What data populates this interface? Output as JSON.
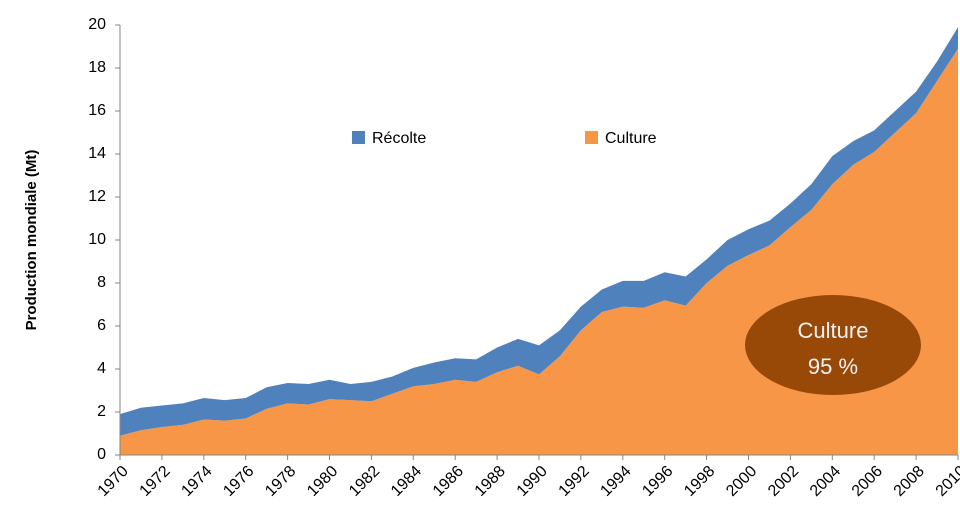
{
  "chart_data": {
    "type": "stacked_area",
    "y_label": "Production mondiale  (Mt)",
    "x": [
      1970,
      1971,
      1972,
      1973,
      1974,
      1975,
      1976,
      1977,
      1978,
      1979,
      1980,
      1981,
      1982,
      1983,
      1984,
      1985,
      1986,
      1987,
      1988,
      1989,
      1990,
      1991,
      1992,
      1993,
      1994,
      1995,
      1996,
      1997,
      1998,
      1999,
      2000,
      2001,
      2002,
      2003,
      2004,
      2005,
      2006,
      2007,
      2008,
      2009,
      2010
    ],
    "series": [
      {
        "name": "Culture",
        "color": "#f79646",
        "values": [
          0.9,
          1.15,
          1.3,
          1.4,
          1.65,
          1.6,
          1.7,
          2.15,
          2.4,
          2.35,
          2.6,
          2.55,
          2.5,
          2.85,
          3.2,
          3.3,
          3.5,
          3.4,
          3.85,
          4.15,
          3.75,
          4.6,
          5.8,
          6.65,
          6.9,
          6.85,
          7.2,
          6.95,
          8.0,
          8.8,
          9.3,
          9.75,
          10.6,
          11.4,
          12.6,
          13.5,
          14.1,
          15.0,
          15.9,
          17.4,
          18.9
        ]
      },
      {
        "name": "Récolte",
        "color": "#4f81bd",
        "values": [
          1.0,
          1.05,
          1.0,
          1.0,
          1.0,
          0.95,
          0.95,
          1.0,
          0.95,
          0.95,
          0.9,
          0.75,
          0.9,
          0.8,
          0.85,
          1.0,
          1.0,
          1.05,
          1.15,
          1.25,
          1.35,
          1.2,
          1.1,
          1.05,
          1.2,
          1.25,
          1.3,
          1.35,
          1.1,
          1.2,
          1.2,
          1.15,
          1.1,
          1.2,
          1.3,
          1.1,
          1.0,
          1.0,
          1.0,
          0.9,
          1.0
        ]
      }
    ],
    "legend_order": [
      1,
      0
    ],
    "xlim": [
      1970,
      2010
    ],
    "xticks": [
      1970,
      1972,
      1974,
      1976,
      1978,
      1980,
      1982,
      1984,
      1986,
      1988,
      1990,
      1992,
      1994,
      1996,
      1998,
      2000,
      2002,
      2004,
      2006,
      2008,
      2010
    ],
    "ylim": [
      0,
      20
    ],
    "yticks": [
      0,
      2,
      4,
      6,
      8,
      10,
      12,
      14,
      16,
      18,
      20
    ],
    "grid": false,
    "annotation": {
      "lines": [
        "Culture",
        "95 %"
      ],
      "color": "#984807"
    }
  }
}
